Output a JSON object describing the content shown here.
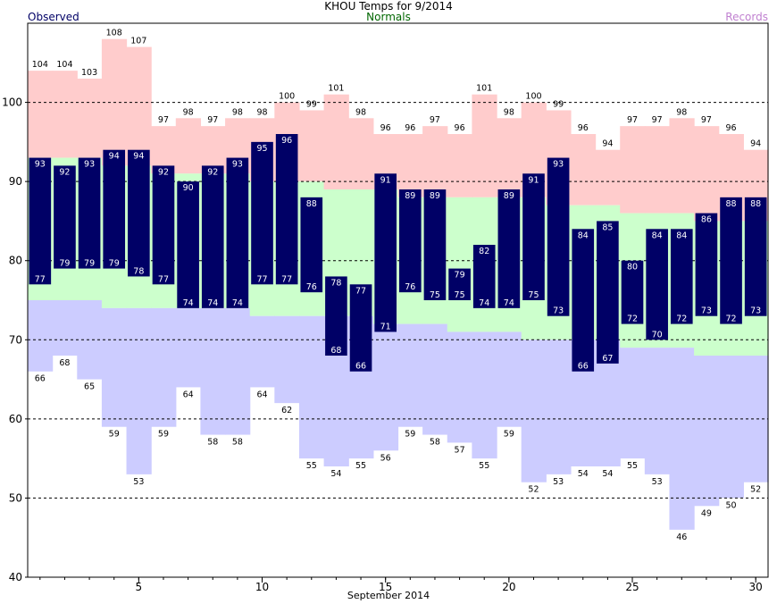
{
  "chart_data": {
    "type": "bar",
    "title": "KHOU Temps for 9/2014",
    "subtitle": "Normals",
    "legend": {
      "observed": "Observed",
      "records": "Records",
      "position": "top"
    },
    "xlabel": "September 2014",
    "ylabel": "",
    "ylim": [
      40,
      110
    ],
    "yticks": [
      40,
      50,
      60,
      70,
      80,
      90,
      100
    ],
    "xticks": [
      5,
      10,
      15,
      20,
      25,
      30
    ],
    "grid": true,
    "days": [
      1,
      2,
      3,
      4,
      5,
      6,
      7,
      8,
      9,
      10,
      11,
      12,
      13,
      14,
      15,
      16,
      17,
      18,
      19,
      20,
      21,
      22,
      23,
      24,
      25,
      26,
      27,
      28,
      29,
      30
    ],
    "series": [
      {
        "name": "Observed",
        "type": "range",
        "high": [
          93,
          92,
          93,
          94,
          94,
          92,
          90,
          92,
          93,
          95,
          96,
          88,
          78,
          77,
          91,
          89,
          89,
          79,
          82,
          89,
          91,
          93,
          84,
          85,
          80,
          84,
          84,
          86,
          88,
          88
        ],
        "low": [
          77,
          79,
          79,
          79,
          78,
          77,
          74,
          74,
          74,
          77,
          77,
          76,
          68,
          66,
          71,
          76,
          75,
          75,
          74,
          74,
          75,
          73,
          66,
          67,
          72,
          70,
          72,
          73,
          72,
          73
        ]
      },
      {
        "name": "Normals",
        "type": "range",
        "high": [
          93,
          93,
          93,
          92,
          92,
          91,
          91,
          91,
          91,
          90,
          90,
          90,
          89,
          89,
          89,
          88,
          88,
          88,
          88,
          88,
          88,
          87,
          87,
          87,
          86,
          86,
          86,
          85,
          85,
          85
        ],
        "low": [
          75,
          75,
          75,
          74,
          74,
          74,
          74,
          74,
          74,
          73,
          73,
          73,
          73,
          73,
          72,
          72,
          72,
          71,
          71,
          71,
          70,
          70,
          70,
          70,
          69,
          69,
          69,
          68,
          68,
          68
        ]
      },
      {
        "name": "Records",
        "type": "range",
        "high": [
          104,
          104,
          103,
          108,
          107,
          97,
          98,
          97,
          98,
          98,
          100,
          99,
          101,
          98,
          96,
          96,
          97,
          96,
          101,
          98,
          100,
          99,
          96,
          94,
          97,
          97,
          98,
          97,
          96,
          94
        ],
        "low": [
          66,
          68,
          65,
          59,
          53,
          59,
          64,
          58,
          58,
          64,
          62,
          55,
          54,
          55,
          56,
          59,
          58,
          57,
          55,
          59,
          52,
          53,
          54,
          54,
          55,
          53,
          46,
          49,
          50,
          52
        ]
      }
    ],
    "colors": {
      "observed": "#000066",
      "normal": "#ccffcc",
      "record_high": "#ffcccc",
      "record_low": "#ccccff",
      "normals_label": "#006600",
      "records_label": "#c080d0",
      "bar_text": "#ffffff",
      "text": "#000000"
    }
  }
}
